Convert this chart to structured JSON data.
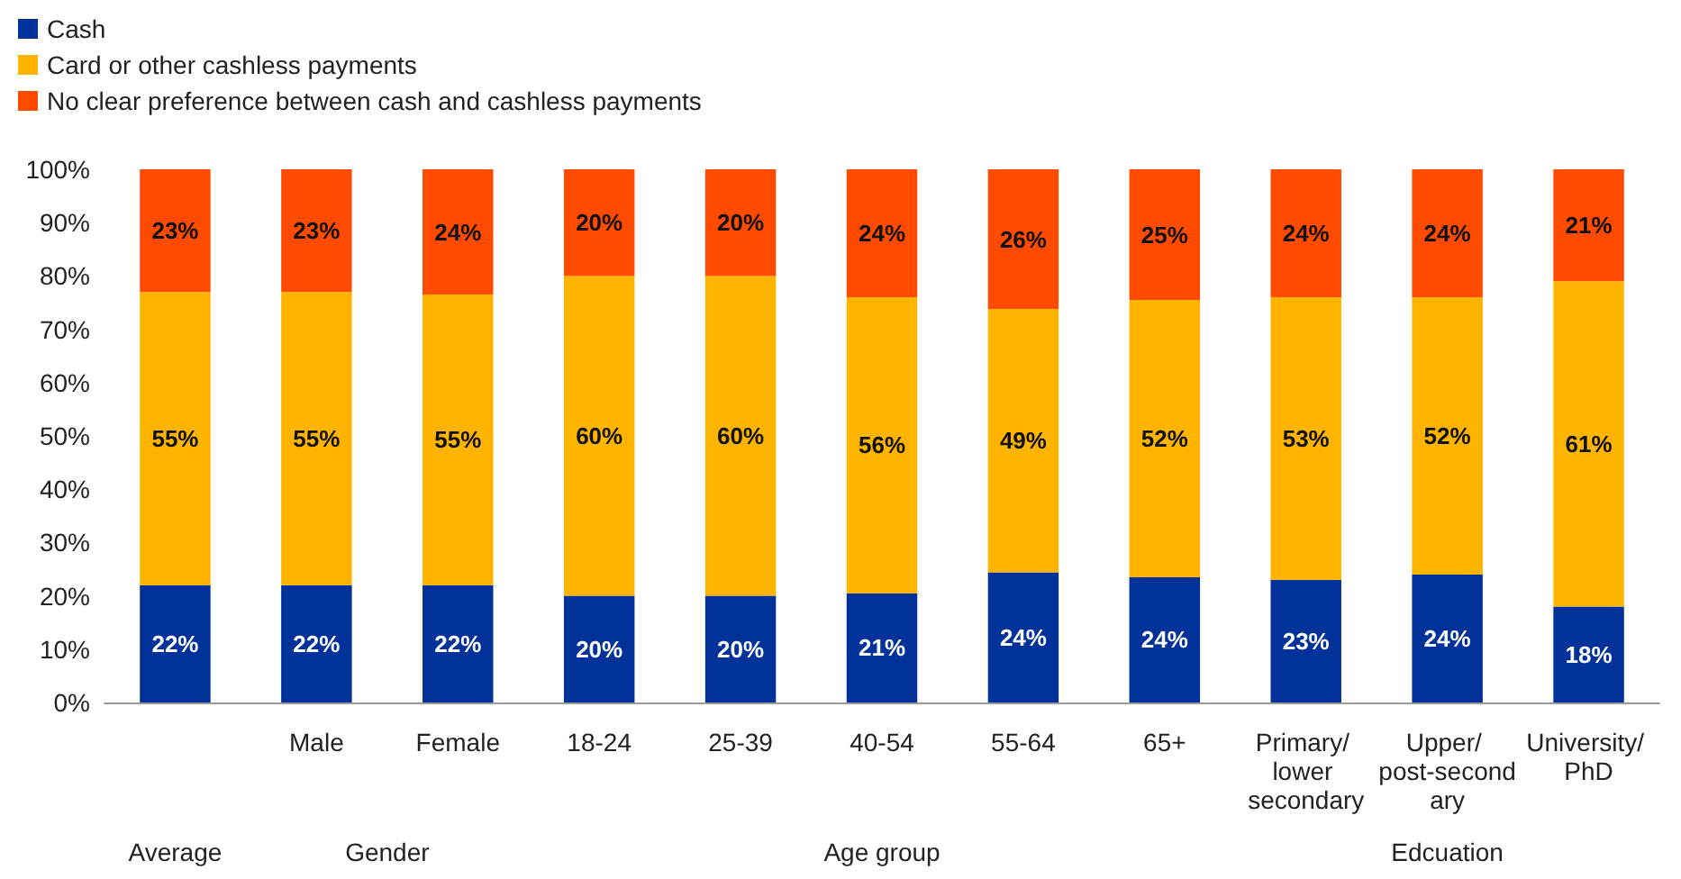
{
  "chart_data": {
    "type": "bar",
    "stacked": true,
    "categories": [
      null,
      "Male",
      "Female",
      "18-24",
      "25-39",
      "40-54",
      "55-64",
      "65+",
      "Primary/ lower secondary",
      "Upper/ post-secondary",
      "University/ PhD"
    ],
    "series": [
      {
        "name": "Cash",
        "color": "#003299",
        "values": [
          22,
          22,
          22,
          20,
          20,
          20.5,
          24.4,
          23.5,
          23,
          24,
          18
        ],
        "value_labels": [
          "22%",
          "22%",
          "22%",
          "20%",
          "20%",
          "21%",
          "24%",
          "24%",
          "23%",
          "24%",
          "18%"
        ]
      },
      {
        "name": "Card or other cashless payments",
        "color": "#ffb400",
        "values": [
          55,
          55,
          54.5,
          60,
          60,
          55.5,
          49.4,
          52,
          53,
          52,
          61
        ],
        "value_labels": [
          "55%",
          "55%",
          "55%",
          "60%",
          "60%",
          "56%",
          "49%",
          "52%",
          "53%",
          "52%",
          "61%"
        ]
      },
      {
        "name": "No clear preference between cash and cashless payments",
        "color": "#ff4b00",
        "values": [
          23,
          23,
          23.5,
          20,
          20,
          24,
          26.2,
          24.5,
          24,
          24,
          21
        ],
        "value_labels": [
          "23%",
          "23%",
          "24%",
          "20%",
          "20%",
          "24%",
          "26%",
          "25%",
          "24%",
          "24%",
          "21%"
        ]
      }
    ],
    "annotations": [
      "Average",
      "Gender",
      "Age group",
      "Edcuation"
    ],
    "ylim": [
      0,
      100
    ],
    "yticks": [
      {
        "value": 0,
        "label": "0%"
      },
      {
        "value": 10,
        "label": "10%"
      },
      {
        "value": 20,
        "label": "20%"
      },
      {
        "value": 30,
        "label": "30%"
      },
      {
        "value": 40,
        "label": "40%"
      },
      {
        "value": 50,
        "label": "50%"
      },
      {
        "value": 60,
        "label": "60%"
      },
      {
        "value": 70,
        "label": "70%"
      },
      {
        "value": 80,
        "label": "80%"
      },
      {
        "value": 90,
        "label": "90%"
      },
      {
        "value": 100,
        "label": "100%"
      }
    ],
    "grid": false,
    "legend": "top left"
  }
}
